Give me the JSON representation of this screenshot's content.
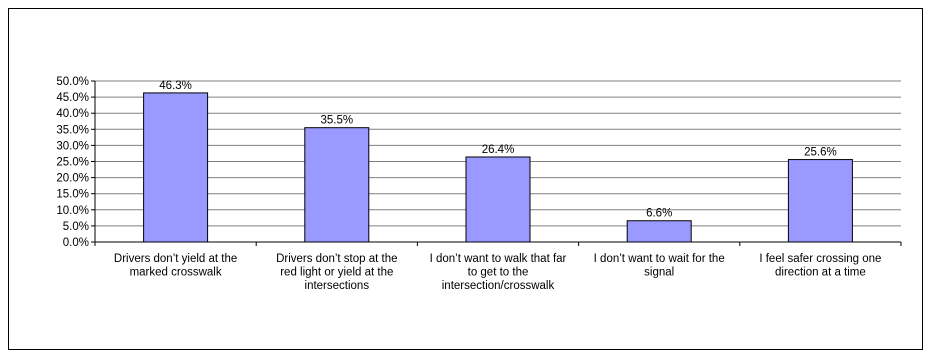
{
  "chart_data": {
    "type": "bar",
    "categories": [
      [
        "Drivers don’t yield at the",
        "marked crosswalk"
      ],
      [
        "Drivers don’t stop at the",
        "red light or yield at the",
        "intersections"
      ],
      [
        "I don’t want to walk that far",
        "to get to the",
        "intersection/crosswalk"
      ],
      [
        "I don’t want to wait for the",
        "signal"
      ],
      [
        "I feel safer crossing one",
        "direction at a time"
      ]
    ],
    "values": [
      46.3,
      35.5,
      26.4,
      6.6,
      25.6
    ],
    "data_labels": [
      "46.3%",
      "35.5%",
      "26.4%",
      "6.6%",
      "25.6%"
    ],
    "y_ticks": [
      0,
      5,
      10,
      15,
      20,
      25,
      30,
      35,
      40,
      45,
      50
    ],
    "y_tick_labels": [
      "0.0%",
      "5.0%",
      "10.0%",
      "15.0%",
      "20.0%",
      "25.0%",
      "30.0%",
      "35.0%",
      "40.0%",
      "45.0%",
      "50.0%"
    ],
    "title": "",
    "xlabel": "",
    "ylabel": "",
    "ylim": [
      0,
      50
    ],
    "grid": true,
    "legend": "none",
    "bar_color": "#9999ff",
    "bar_edge_color": "#000000",
    "grid_color": "#808080"
  }
}
